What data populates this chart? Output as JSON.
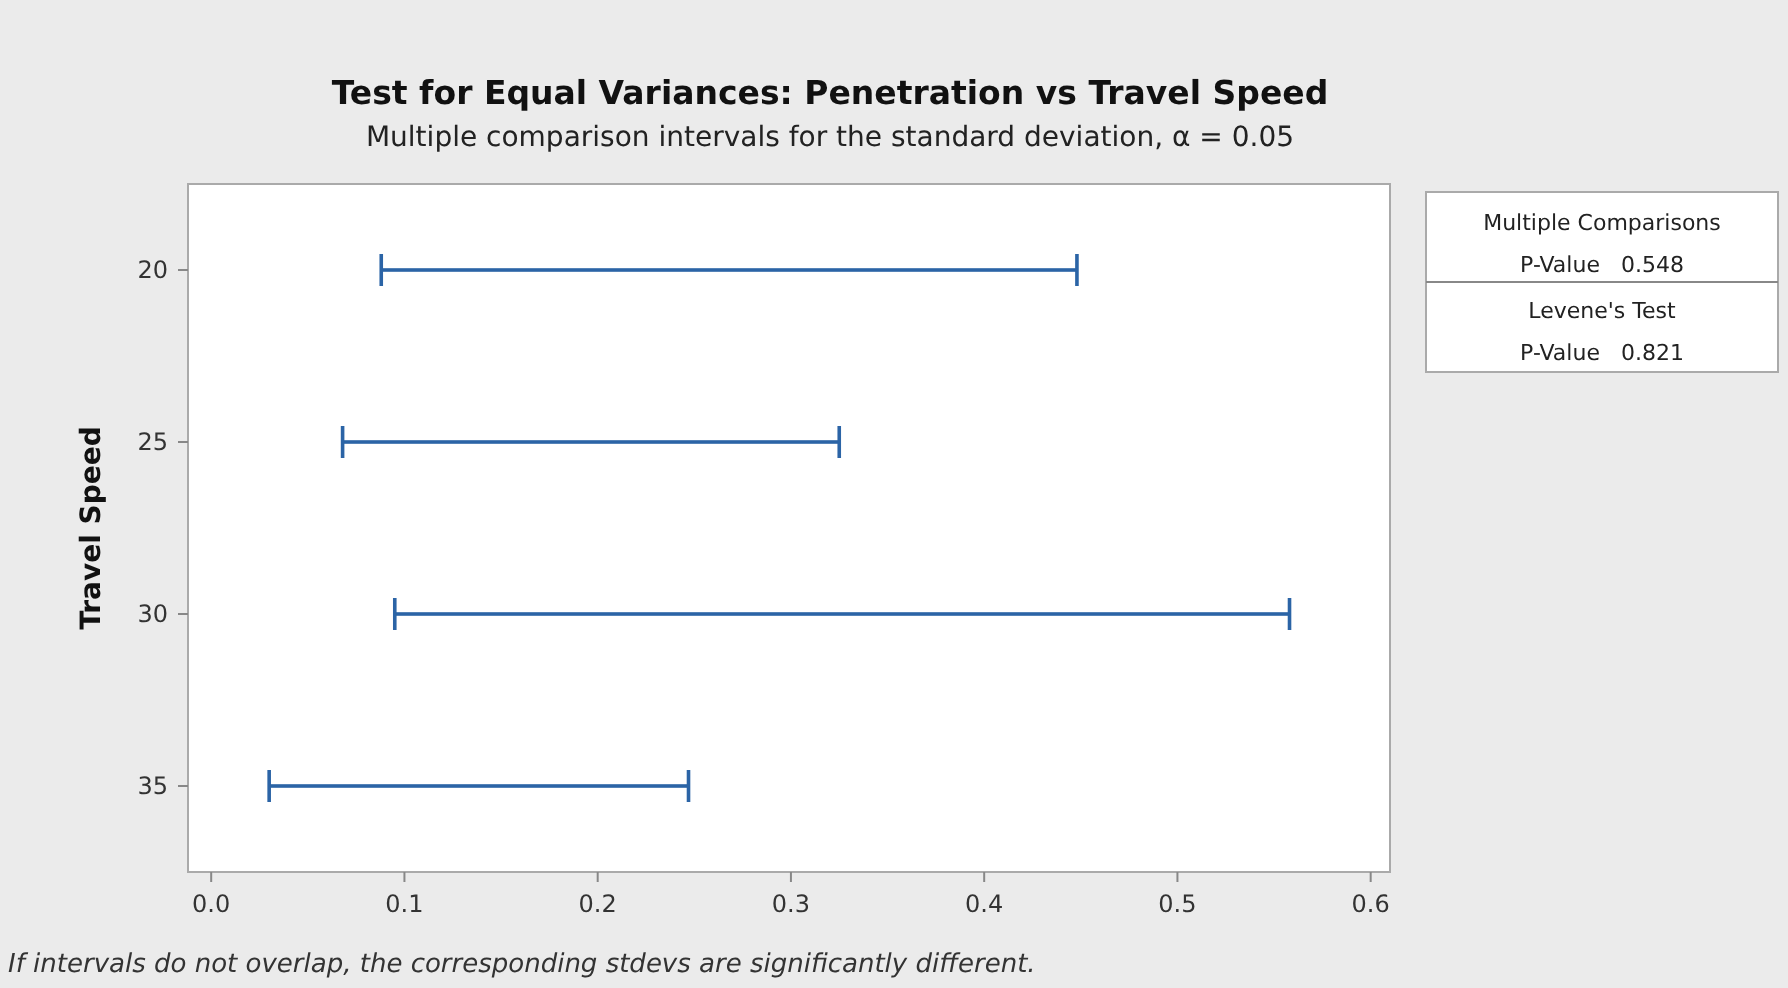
{
  "chart_data": {
    "type": "bar",
    "orientation": "horizontal",
    "title": "Test for Equal Variances: Penetration vs Travel Speed",
    "subtitle": "Multiple comparison intervals for the standard deviation, α = 0.05",
    "ylabel": "Travel Speed",
    "categories": [
      "20",
      "25",
      "30",
      "35"
    ],
    "base": [
      0.088,
      0.068,
      0.095,
      0.03
    ],
    "values": [
      0.36,
      0.257,
      0.463,
      0.217
    ],
    "color": "#2b64a6",
    "xlim": [
      -0.012,
      0.61
    ],
    "xticks": [
      {
        "value": 0,
        "label": "0.0"
      },
      0.1,
      0.2,
      0.3,
      0.4,
      0.5,
      0.6
    ],
    "grid": false,
    "annotations": [
      "Multiple Comparisons",
      "P-Value   0.548",
      "Levene's Test",
      "P-Value   0.821",
      "If intervals do not overlap, the corresponding stdevs are significantly different."
    ]
  }
}
